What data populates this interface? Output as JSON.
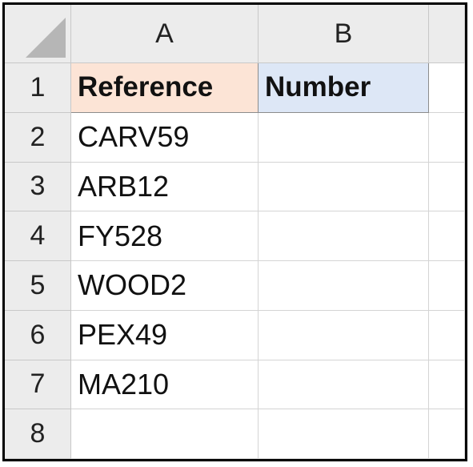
{
  "columns": [
    "A",
    "B"
  ],
  "rows": [
    {
      "num": "1",
      "a": "Reference",
      "b": "Number"
    },
    {
      "num": "2",
      "a": "CARV59",
      "b": ""
    },
    {
      "num": "3",
      "a": "ARB12",
      "b": ""
    },
    {
      "num": "4",
      "a": "FY528",
      "b": ""
    },
    {
      "num": "5",
      "a": "WOOD2",
      "b": ""
    },
    {
      "num": "6",
      "a": "PEX49",
      "b": ""
    },
    {
      "num": "7",
      "a": "MA210",
      "b": ""
    },
    {
      "num": "8",
      "a": "",
      "b": ""
    }
  ],
  "colors": {
    "header_a_fill": "#fce4d6",
    "header_b_fill": "#dde7f6",
    "heading_fill": "#ececec"
  }
}
